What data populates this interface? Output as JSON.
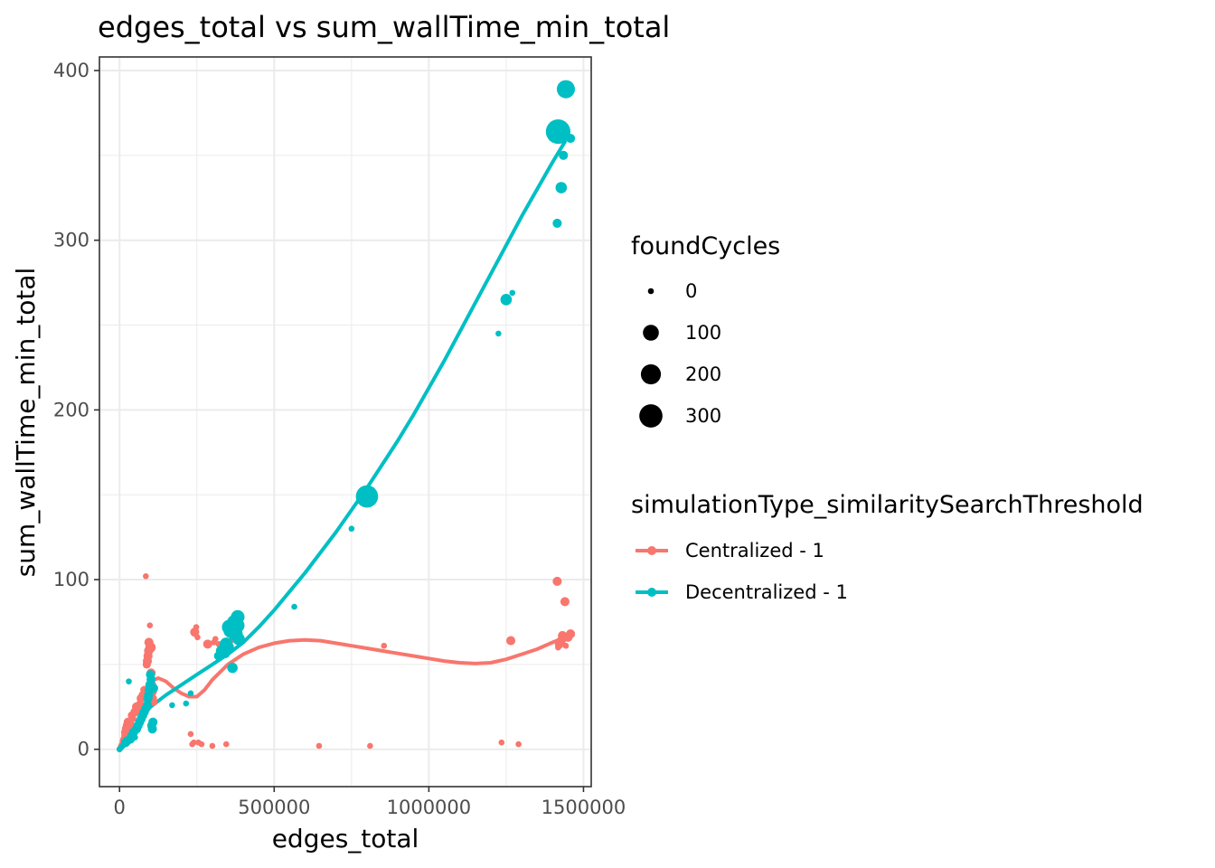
{
  "chart_data": {
    "type": "scatter",
    "title": "edges_total  vs  sum_wallTime_min_total",
    "xlabel": "edges_total",
    "ylabel": "sum_wallTime_min_total",
    "xlim": [
      -65000,
      1525000
    ],
    "ylim": [
      -22,
      408
    ],
    "x_ticks": [
      0,
      500000,
      1000000,
      1500000
    ],
    "x_tick_labels": [
      "0",
      "500000",
      "1000000",
      "1500000"
    ],
    "y_ticks": [
      0,
      100,
      200,
      300,
      400
    ],
    "y_tick_labels": [
      "0",
      "100",
      "200",
      "300",
      "400"
    ],
    "grid": true,
    "colors": {
      "Centralized - 1": "#f8766d",
      "Decentralized - 1": "#00bfc4"
    },
    "size_legend": {
      "title": "foundCycles",
      "values": [
        0,
        100,
        200,
        300
      ],
      "labels": [
        "0",
        "100",
        "200",
        "300"
      ]
    },
    "color_legend": {
      "title": "simulationType_similaritySearchThreshold",
      "placement": "right"
    },
    "series": [
      {
        "name": "Centralized - 1",
        "points": [
          [
            0,
            0,
            0
          ],
          [
            3000,
            1,
            0
          ],
          [
            5000,
            2,
            0
          ],
          [
            8000,
            3,
            0
          ],
          [
            10000,
            5,
            0
          ],
          [
            12000,
            6,
            0
          ],
          [
            15000,
            8,
            0
          ],
          [
            18000,
            10,
            5
          ],
          [
            22000,
            12,
            10
          ],
          [
            25000,
            14,
            10
          ],
          [
            28000,
            16,
            10
          ],
          [
            35000,
            15,
            5
          ],
          [
            40000,
            20,
            5
          ],
          [
            45000,
            18,
            0
          ],
          [
            50000,
            22,
            10
          ],
          [
            55000,
            25,
            10
          ],
          [
            60000,
            24,
            10
          ],
          [
            65000,
            26,
            10
          ],
          [
            70000,
            30,
            10
          ],
          [
            75000,
            32,
            5
          ],
          [
            80000,
            35,
            5
          ],
          [
            82000,
            26,
            0
          ],
          [
            85000,
            102,
            0
          ],
          [
            88000,
            50,
            5
          ],
          [
            90000,
            52,
            10
          ],
          [
            92000,
            55,
            10
          ],
          [
            94000,
            58,
            10
          ],
          [
            95000,
            63,
            10
          ],
          [
            98000,
            73,
            0
          ],
          [
            100000,
            60,
            20
          ],
          [
            102000,
            45,
            10
          ],
          [
            104000,
            38,
            10
          ],
          [
            106000,
            34,
            10
          ],
          [
            108000,
            30,
            5
          ],
          [
            110000,
            28,
            5
          ],
          [
            230000,
            9,
            0
          ],
          [
            235000,
            3,
            0
          ],
          [
            240000,
            4,
            0
          ],
          [
            243000,
            69,
            10
          ],
          [
            248000,
            72,
            0
          ],
          [
            252000,
            66,
            0
          ],
          [
            255000,
            4,
            0
          ],
          [
            265000,
            3,
            0
          ],
          [
            285000,
            62,
            10
          ],
          [
            300000,
            2,
            0
          ],
          [
            305000,
            63,
            0
          ],
          [
            310000,
            65,
            0
          ],
          [
            320000,
            62,
            0
          ],
          [
            340000,
            60,
            0
          ],
          [
            345000,
            3,
            0
          ],
          [
            360000,
            64,
            0
          ],
          [
            645000,
            2,
            0
          ],
          [
            810000,
            2,
            0
          ],
          [
            855000,
            61,
            0
          ],
          [
            1235000,
            4,
            0
          ],
          [
            1265000,
            64,
            10
          ],
          [
            1290000,
            3,
            0
          ],
          [
            1415000,
            99,
            10
          ],
          [
            1418000,
            60,
            0
          ],
          [
            1422000,
            62,
            10
          ],
          [
            1428000,
            64,
            10
          ],
          [
            1432000,
            67,
            10
          ],
          [
            1440000,
            87,
            10
          ],
          [
            1443000,
            61,
            0
          ],
          [
            1450000,
            66,
            10
          ],
          [
            1458000,
            68,
            10
          ]
        ],
        "smooth": [
          [
            0,
            0
          ],
          [
            25000,
            12
          ],
          [
            50000,
            22
          ],
          [
            75000,
            33
          ],
          [
            100000,
            40
          ],
          [
            125000,
            42
          ],
          [
            150000,
            40
          ],
          [
            175000,
            36
          ],
          [
            200000,
            33
          ],
          [
            225000,
            31
          ],
          [
            250000,
            31
          ],
          [
            275000,
            35
          ],
          [
            300000,
            41
          ],
          [
            350000,
            50
          ],
          [
            400000,
            56
          ],
          [
            450000,
            60
          ],
          [
            500000,
            62.5
          ],
          [
            550000,
            64
          ],
          [
            600000,
            64.5
          ],
          [
            650000,
            64
          ],
          [
            700000,
            62.5
          ],
          [
            750000,
            61
          ],
          [
            800000,
            59.5
          ],
          [
            850000,
            58
          ],
          [
            900000,
            56.5
          ],
          [
            950000,
            55
          ],
          [
            1000000,
            53.5
          ],
          [
            1050000,
            52
          ],
          [
            1100000,
            51
          ],
          [
            1150000,
            50.5
          ],
          [
            1200000,
            51
          ],
          [
            1250000,
            53
          ],
          [
            1300000,
            56
          ],
          [
            1350000,
            59
          ],
          [
            1400000,
            63
          ],
          [
            1440000,
            66
          ]
        ]
      },
      {
        "name": "Decentralized - 1",
        "points": [
          [
            0,
            0,
            0
          ],
          [
            5000,
            1,
            0
          ],
          [
            10000,
            2,
            0
          ],
          [
            15000,
            3,
            0
          ],
          [
            20000,
            4,
            10
          ],
          [
            25000,
            5,
            10
          ],
          [
            30000,
            40,
            0
          ],
          [
            35000,
            6,
            10
          ],
          [
            40000,
            8,
            10
          ],
          [
            45000,
            10,
            10
          ],
          [
            50000,
            7,
            0
          ],
          [
            55000,
            12,
            10
          ],
          [
            60000,
            14,
            10
          ],
          [
            65000,
            16,
            10
          ],
          [
            70000,
            18,
            10
          ],
          [
            75000,
            20,
            10
          ],
          [
            80000,
            22,
            10
          ],
          [
            85000,
            24,
            10
          ],
          [
            90000,
            26,
            10
          ],
          [
            92000,
            30,
            10
          ],
          [
            94000,
            32,
            10
          ],
          [
            96000,
            35,
            10
          ],
          [
            98000,
            38,
            10
          ],
          [
            100000,
            44,
            10
          ],
          [
            102000,
            41,
            10
          ],
          [
            104000,
            14,
            10
          ],
          [
            106000,
            12,
            10
          ],
          [
            108000,
            16,
            10
          ],
          [
            110000,
            36,
            10
          ],
          [
            170000,
            26,
            0
          ],
          [
            215000,
            27,
            0
          ],
          [
            230000,
            33,
            0
          ],
          [
            320000,
            55,
            10
          ],
          [
            330000,
            58,
            30
          ],
          [
            340000,
            57,
            30
          ],
          [
            345000,
            62,
            50
          ],
          [
            350000,
            60,
            40
          ],
          [
            355000,
            72,
            80
          ],
          [
            360000,
            70,
            80
          ],
          [
            365000,
            48,
            20
          ],
          [
            370000,
            75,
            60
          ],
          [
            375000,
            68,
            70
          ],
          [
            380000,
            73,
            80
          ],
          [
            382000,
            78,
            60
          ],
          [
            385000,
            65,
            40
          ],
          [
            565000,
            84,
            0
          ],
          [
            750000,
            130,
            0
          ],
          [
            800000,
            149,
            270
          ],
          [
            1225000,
            245,
            0
          ],
          [
            1250000,
            265,
            30
          ],
          [
            1270000,
            269,
            0
          ],
          [
            1415000,
            310,
            10
          ],
          [
            1418000,
            364,
            350
          ],
          [
            1428000,
            331,
            30
          ],
          [
            1435000,
            350,
            10
          ],
          [
            1443000,
            389,
            150
          ],
          [
            1458000,
            360,
            10
          ]
        ],
        "smooth": [
          [
            0,
            0
          ],
          [
            25000,
            7
          ],
          [
            50000,
            14
          ],
          [
            75000,
            20
          ],
          [
            100000,
            25
          ],
          [
            150000,
            32
          ],
          [
            200000,
            38
          ],
          [
            250000,
            44
          ],
          [
            300000,
            50
          ],
          [
            350000,
            56
          ],
          [
            400000,
            63
          ],
          [
            450000,
            72
          ],
          [
            500000,
            82
          ],
          [
            550000,
            93
          ],
          [
            600000,
            104
          ],
          [
            650000,
            116
          ],
          [
            700000,
            128
          ],
          [
            750000,
            141
          ],
          [
            800000,
            154
          ],
          [
            850000,
            168
          ],
          [
            900000,
            182
          ],
          [
            950000,
            197
          ],
          [
            1000000,
            213
          ],
          [
            1050000,
            229
          ],
          [
            1100000,
            246
          ],
          [
            1150000,
            263
          ],
          [
            1200000,
            280
          ],
          [
            1250000,
            297
          ],
          [
            1300000,
            314
          ],
          [
            1350000,
            330
          ],
          [
            1400000,
            346
          ],
          [
            1440000,
            358
          ]
        ]
      }
    ]
  }
}
